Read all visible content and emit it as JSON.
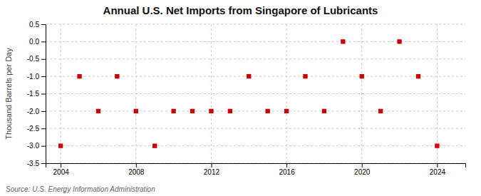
{
  "chart_data": {
    "type": "scatter",
    "title": "Annual U.S. Net Imports from Singapore of Lubricants",
    "ylabel": "Thousand Barrels per Day",
    "annotations": [
      "Source: U.S. Energy Information Administration"
    ],
    "x": [
      2004,
      2005,
      2006,
      2007,
      2008,
      2009,
      2010,
      2011,
      2012,
      2013,
      2014,
      2015,
      2016,
      2017,
      2018,
      2019,
      2020,
      2021,
      2022,
      2023,
      2024
    ],
    "values": [
      -3,
      -1,
      -2,
      -1,
      -2,
      -3,
      -2,
      -2,
      -2,
      -2,
      -1,
      -2,
      -2,
      -1,
      -2,
      0,
      -1,
      -2,
      0,
      -1,
      -3
    ],
    "color": "#cc0000",
    "marker": "square",
    "xlim": [
      2003.2,
      2025.5
    ],
    "xticks": [
      2004,
      2008,
      2012,
      2016,
      2020,
      2024
    ],
    "ylim": [
      -3.5,
      0.5
    ],
    "yticks": [
      0.5,
      {
        "value": 0,
        "label": "0.0"
      },
      -0.5,
      {
        "value": -1,
        "label": "-1.0"
      },
      -1.5,
      {
        "value": -2,
        "label": "-2.0"
      },
      -2.5,
      {
        "value": -3,
        "label": "-3.0"
      },
      -3.5
    ],
    "grid": true
  }
}
